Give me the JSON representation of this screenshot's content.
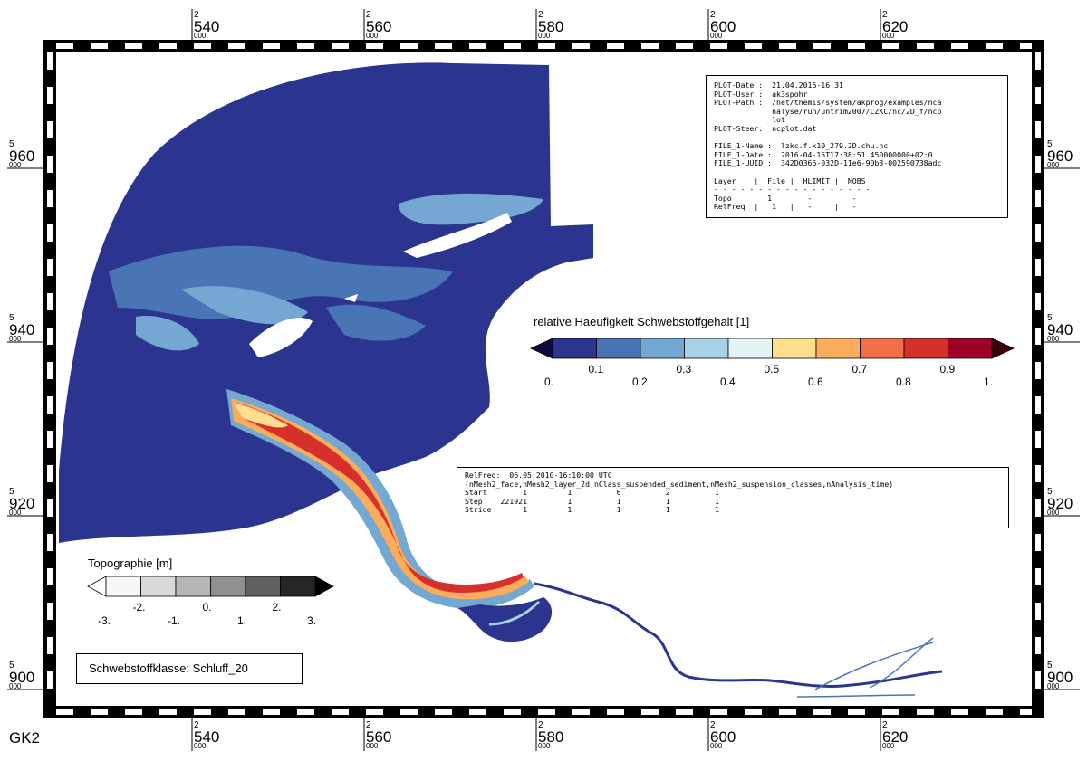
{
  "frame": {
    "x_labels": [
      {
        "sup": "2",
        "main": "540",
        "sub": "000"
      },
      {
        "sup": "2",
        "main": "560",
        "sub": "000"
      },
      {
        "sup": "2",
        "main": "580",
        "sub": "000"
      },
      {
        "sup": "2",
        "main": "600",
        "sub": "000"
      },
      {
        "sup": "2",
        "main": "620",
        "sub": "000"
      }
    ],
    "y_labels": [
      {
        "sup": "5",
        "main": "960",
        "sub": "000"
      },
      {
        "sup": "5",
        "main": "940",
        "sub": "000"
      },
      {
        "sup": "5",
        "main": "920",
        "sub": "000"
      },
      {
        "sup": "5",
        "main": "900",
        "sub": "000"
      }
    ],
    "crs_label": "GK2"
  },
  "plot_info": {
    "lines": [
      "PLOT-Date :  21.04.2016-16:31",
      "PLOT-User :  ak3spohr",
      "PLOT-Path :  /net/themis/system/akprog/examples/nca",
      "             nalyse/run/untrim2007/LZKC/nc/2D_f/ncp",
      "             lot",
      "PLOT-Steer:  ncplot.dat",
      "",
      "FILE_1-Name :  lzkc.f.k10_279.2D.chu.nc",
      "FILE_1-Date :  2016-04-15T17:38:51.450000000+02:0",
      "FILE_1-UUID :  342D0366-032D-11e6-90b3-002590738adc",
      "",
      "Layer    |  File |  HLIMIT |  NOBS",
      "- - - - - - - - - - - - - - - - - -",
      "Topo        1        -         -",
      "RelFreq  |   1   |   -     |   -"
    ]
  },
  "relfreq_info": {
    "lines": [
      "RelFreq:  06.05.2010-16:10:00 UTC",
      "(nMesh2_face,nMesh2_layer_2d,nClass_suspended_sediment,nMesh2_suspension_classes,nAnalysis_time)",
      "Start        1         1          6          2          1",
      "Step    221921         1          1          1          1",
      "Stride       1         1          1          1          1"
    ]
  },
  "color_legend": {
    "title": "relative Haeufigkeit Schwebstoffgehalt [1]",
    "colors": [
      "#2b3590",
      "#4a75b5",
      "#74a7d2",
      "#a6d2e6",
      "#e2f2f5",
      "#fde08f",
      "#fbad5c",
      "#f26e45",
      "#d6302b",
      "#9f0026"
    ],
    "end_colors": [
      "#0a0a40",
      "#3c0008"
    ],
    "ticks_upper": [
      "0.1",
      "0.3",
      "0.5",
      "0.7",
      "0.9"
    ],
    "ticks_lower": [
      "0.",
      "0.2",
      "0.4",
      "0.6",
      "0.8",
      "1."
    ]
  },
  "topo_legend": {
    "title": "Topographie [m]",
    "colors": [
      "#f7f7f7",
      "#d9d9d9",
      "#b6b6b6",
      "#8f8f8f",
      "#616161",
      "#262626"
    ],
    "end_colors": [
      "#ffffff",
      "#000000"
    ],
    "ticks_upper": [
      "-2.",
      "0.",
      "2."
    ],
    "ticks_lower": [
      "-3.",
      "-1.",
      "1.",
      "3."
    ]
  },
  "class_label": "Schwebstoffklasse: Schluff_20"
}
